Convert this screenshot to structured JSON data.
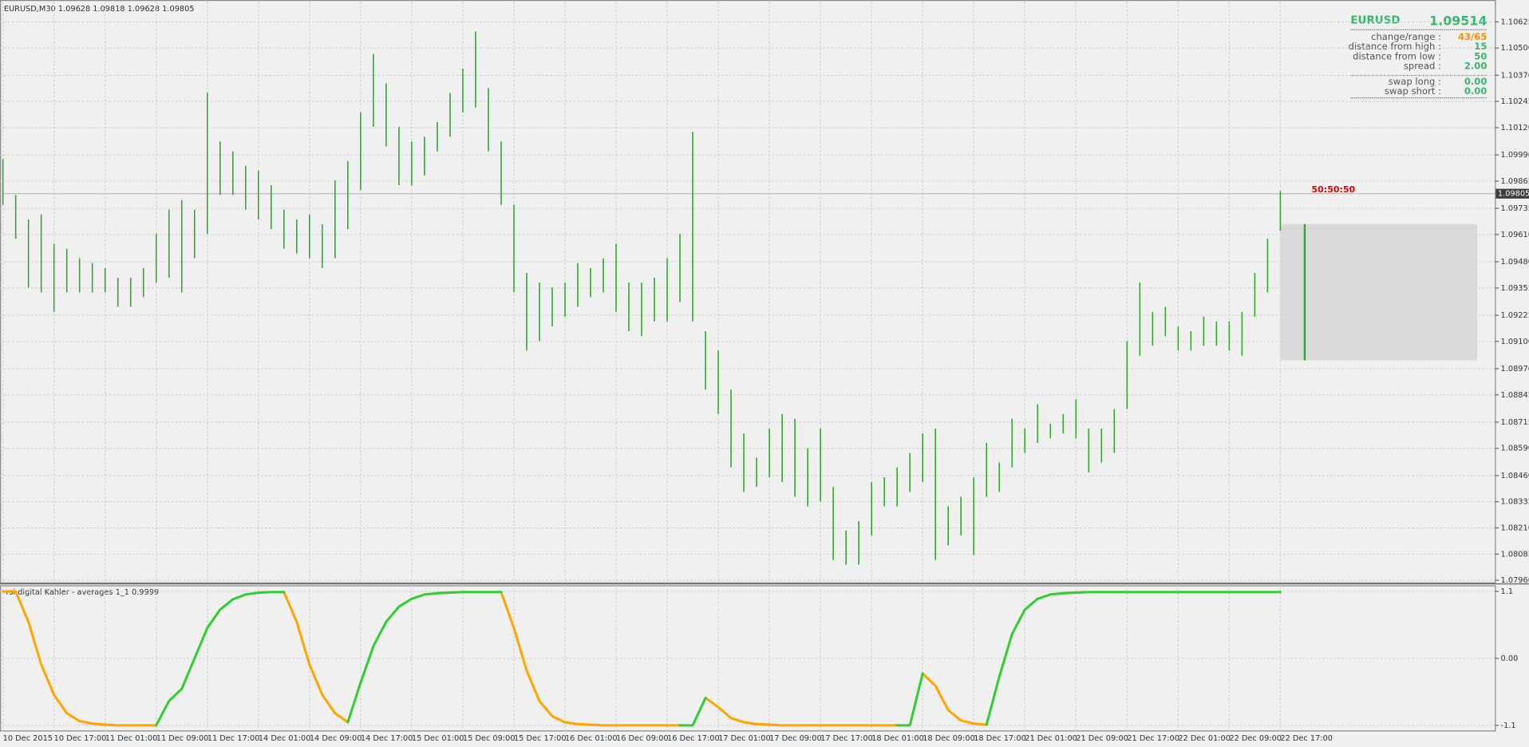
{
  "chart_data": [
    {
      "type": "ohlc",
      "title": "EURUSD,M30  1.09628 1.09818 1.09628 1.09805",
      "categories": [
        "10 Dec 2015",
        null,
        null,
        null,
        "10 Dec 17:00",
        null,
        null,
        null,
        "11 Dec 01:00",
        null,
        null,
        null,
        "11 Dec 09:00",
        null,
        null,
        null,
        "11 Dec 17:00",
        null,
        null,
        null,
        "14 Dec 01:00",
        null,
        null,
        null,
        "14 Dec 09:00",
        null,
        null,
        null,
        "14 Dec 17:00",
        null,
        null,
        null,
        "15 Dec 01:00",
        null,
        null,
        null,
        "15 Dec 09:00",
        null,
        null,
        null,
        "15 Dec 17:00",
        null,
        null,
        null,
        "16 Dec 01:00",
        null,
        null,
        null,
        "16 Dec 09:00",
        null,
        null,
        null,
        "16 Dec 17:00",
        null,
        null,
        null,
        "17 Dec 01:00",
        null,
        null,
        null,
        "17 Dec 09:00",
        null,
        null,
        null,
        "17 Dec 17:00",
        null,
        null,
        null,
        "18 Dec 01:00",
        null,
        null,
        null,
        "18 Dec 09:00",
        null,
        null,
        null,
        "18 Dec 17:00",
        null,
        null,
        null,
        "21 Dec 01:00",
        null,
        null,
        null,
        "21 Dec 09:00",
        null,
        null,
        null,
        "21 Dec 17:00",
        null,
        null,
        null,
        "22 Dec 01:00",
        null,
        null,
        null,
        "22 Dec 09:00",
        null,
        null,
        null,
        "22 Dec 17:00"
      ],
      "high": [
        1.0997,
        1.09799,
        1.09682,
        1.09706,
        1.09566,
        1.09543,
        1.09497,
        1.09474,
        1.0945,
        1.09404,
        1.09404,
        1.0945,
        1.09613,
        1.09729,
        1.09775,
        1.09729,
        1.10286,
        1.10054,
        1.10007,
        1.09938,
        1.09915,
        1.09845,
        1.09729,
        1.09682,
        1.09706,
        1.09659,
        1.09868,
        1.09961,
        1.10193,
        1.10472,
        1.10332,
        1.10124,
        1.10054,
        1.10077,
        1.10147,
        1.10286,
        1.10402,
        1.10579,
        1.10309,
        1.10054,
        1.09752,
        1.09427,
        1.09381,
        1.09357,
        1.09381,
        1.09474,
        1.0945,
        1.09497,
        1.09566,
        1.09381,
        1.09381,
        1.09404,
        1.09497,
        1.09613,
        1.101,
        1.09149,
        1.09056,
        1.0887,
        1.08661,
        1.08545,
        1.08684,
        1.08754,
        1.08731,
        1.08591,
        1.08684,
        1.08406,
        1.08197,
        1.08243,
        1.08429,
        1.08452,
        1.08499,
        1.08568,
        1.08661,
        1.08684,
        1.08313,
        1.08359,
        1.08452,
        1.08615,
        1.08522,
        1.08731,
        1.08684,
        1.088,
        1.08707,
        1.08754,
        1.08824,
        1.08684,
        1.08684,
        1.08777,
        1.09102,
        1.09381,
        1.09241,
        1.09265,
        1.09172,
        1.09149,
        1.09218,
        1.09195,
        1.09195,
        1.09241,
        1.09427,
        1.0959,
        1.09818
      ],
      "low": [
        1.09752,
        1.0959,
        1.09357,
        1.09334,
        1.09241,
        1.09334,
        1.09334,
        1.09334,
        1.09334,
        1.09265,
        1.09265,
        1.09311,
        1.09381,
        1.09404,
        1.09334,
        1.09497,
        1.09613,
        1.09799,
        1.09799,
        1.09729,
        1.09682,
        1.09636,
        1.09543,
        1.0952,
        1.09497,
        1.0945,
        1.09497,
        1.09636,
        1.09822,
        1.10124,
        1.10031,
        1.09845,
        1.09845,
        1.09891,
        1.10007,
        1.10077,
        1.10193,
        1.10216,
        1.10007,
        1.09752,
        1.09334,
        1.09056,
        1.09102,
        1.09172,
        1.09218,
        1.09265,
        1.09311,
        1.09334,
        1.09241,
        1.09149,
        1.09125,
        1.09195,
        1.09195,
        1.09288,
        1.09195,
        1.0887,
        1.08754,
        1.08499,
        1.08382,
        1.08406,
        1.08452,
        1.08429,
        1.08359,
        1.08313,
        1.08336,
        1.08057,
        1.08034,
        1.08034,
        1.08174,
        1.08313,
        1.08313,
        1.08382,
        1.08429,
        1.08057,
        1.08127,
        1.08174,
        1.08081,
        1.08359,
        1.08382,
        1.08499,
        1.08568,
        1.08615,
        1.08638,
        1.08661,
        1.08638,
        1.08475,
        1.08522,
        1.08568,
        1.08777,
        1.09032,
        1.09079,
        1.09125,
        1.09056,
        1.09056,
        1.09079,
        1.09079,
        1.09056,
        1.09032,
        1.09218,
        1.09334,
        1.09628
      ],
      "color": "#2ea82e",
      "ylim": [
        1.0795,
        1.1072
      ],
      "yticks": [
        1.10625,
        {
          "value": 1.105,
          "label": "1.10500"
        },
        {
          "value": 1.1037,
          "label": "1.10370"
        },
        1.10245,
        {
          "value": 1.1012,
          "label": "1.10120"
        },
        {
          "value": 1.0999,
          "label": "1.09990"
        },
        1.09865,
        1.09735,
        {
          "value": 1.0961,
          "label": "1.09610"
        },
        {
          "value": 1.0948,
          "label": "1.09480"
        },
        1.09355,
        1.09225,
        {
          "value": 1.091,
          "label": "1.09100"
        },
        {
          "value": 1.0897,
          "label": "1.08970"
        },
        1.08845,
        1.08715,
        {
          "value": 1.0859,
          "label": "1.08590"
        },
        {
          "value": 1.0846,
          "label": "1.08460"
        },
        1.08335,
        {
          "value": 1.0821,
          "label": "1.08210"
        },
        1.08085,
        {
          "value": 1.0796,
          "label": "1.07960"
        }
      ],
      "grid": true,
      "last_price": 1.09805,
      "timer": "50:50:50",
      "projection": {
        "high": 1.0966,
        "low": 1.0901
      }
    },
    {
      "type": "line",
      "title": "rsi digital Kahler - averages 1_1 0.9999",
      "series": [
        {
          "color": "#ffa500",
          "values": [
            1.1,
            1.1,
            0.6,
            -0.1,
            -0.6,
            -0.9,
            -1.03,
            -1.07,
            -1.09,
            -1.1,
            -1.1,
            -1.1,
            -1.1,
            null,
            null,
            null,
            null,
            null,
            null,
            null,
            null,
            null,
            1.09,
            0.6,
            -0.1,
            -0.6,
            -0.9,
            -1.05,
            null,
            null,
            null,
            null,
            null,
            null,
            null,
            null,
            null,
            null,
            null,
            1.09,
            0.5,
            -0.2,
            -0.7,
            -0.95,
            -1.05,
            -1.08,
            -1.09,
            -1.1,
            -1.1,
            -1.1,
            -1.1,
            -1.1,
            -1.1,
            -1.1,
            null,
            -0.65,
            -0.8,
            -0.98,
            -1.05,
            -1.08,
            -1.09,
            -1.1,
            -1.1,
            -1.1,
            -1.1,
            -1.1,
            -1.1,
            -1.1,
            -1.1,
            -1.1,
            -1.1,
            null,
            -0.25,
            -0.45,
            -0.85,
            -1.02,
            -1.07,
            -1.09,
            null,
            null,
            null,
            null,
            null,
            null,
            null,
            null,
            null,
            null,
            null,
            null,
            null,
            null,
            null,
            null,
            null,
            null,
            null,
            null,
            null,
            null,
            null
          ]
        },
        {
          "color": "#32cd32",
          "values": [
            null,
            null,
            null,
            null,
            null,
            null,
            null,
            null,
            null,
            null,
            null,
            null,
            -1.1,
            -0.7,
            -0.5,
            0.0,
            0.5,
            0.8,
            0.97,
            1.05,
            1.08,
            1.09,
            1.09,
            null,
            null,
            null,
            null,
            -1.05,
            -0.4,
            0.2,
            0.6,
            0.85,
            0.98,
            1.05,
            1.07,
            1.08,
            1.09,
            1.09,
            1.09,
            1.09,
            null,
            null,
            null,
            null,
            null,
            null,
            null,
            null,
            null,
            null,
            null,
            null,
            null,
            -1.1,
            -1.1,
            -0.65,
            null,
            null,
            null,
            null,
            null,
            null,
            null,
            null,
            null,
            null,
            null,
            null,
            null,
            null,
            -1.1,
            -1.1,
            -0.25,
            null,
            null,
            null,
            null,
            -1.09,
            -0.3,
            0.4,
            0.8,
            0.98,
            1.05,
            1.07,
            1.08,
            1.09,
            1.09,
            1.09,
            1.09,
            1.09,
            1.09,
            1.09,
            1.09,
            1.09,
            1.09,
            1.09,
            1.09,
            1.09,
            1.09,
            1.09,
            1.09
          ]
        }
      ],
      "ylim": [
        -1.2,
        1.2
      ],
      "yticks": [
        1.1,
        {
          "value": 0,
          "label": "0.00"
        },
        -1.1
      ],
      "grid": true
    }
  ],
  "info_panel": {
    "symbol": "EURUSD",
    "price": "1.09514",
    "rows": [
      {
        "label": "change/range :",
        "value": "43/65"
      },
      {
        "label": "distance from high :",
        "value": "15"
      },
      {
        "label": "distance from low :",
        "value": "50"
      },
      {
        "label": "spread :",
        "value": "2.00"
      }
    ],
    "swap_rows": [
      {
        "label": "swap long :",
        "value": "0.00"
      },
      {
        "label": "swap short :",
        "value": "0.00"
      }
    ]
  }
}
